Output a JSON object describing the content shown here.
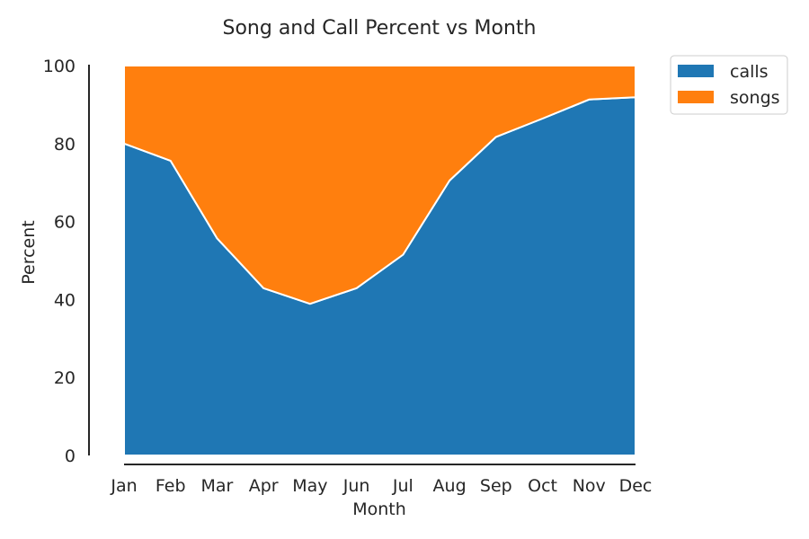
{
  "chart_data": {
    "type": "area",
    "stacked": true,
    "title": "Song and Call Percent vs Month",
    "xlabel": "Month",
    "ylabel": "Percent",
    "categories": [
      "Jan",
      "Feb",
      "Mar",
      "Apr",
      "May",
      "Jun",
      "Jul",
      "Aug",
      "Sep",
      "Oct",
      "Nov",
      "Dec"
    ],
    "series": [
      {
        "name": "calls",
        "color": "#1f77b4",
        "values": [
          80.0,
          75.6,
          55.7,
          42.9,
          38.9,
          42.9,
          51.5,
          70.5,
          81.7,
          86.4,
          91.3,
          91.9
        ]
      },
      {
        "name": "songs",
        "color": "#ff7f0e",
        "values": [
          20.0,
          24.4,
          44.3,
          57.1,
          61.1,
          57.1,
          48.5,
          29.5,
          18.3,
          13.6,
          8.7,
          8.1
        ]
      }
    ],
    "ylim": [
      0,
      100
    ],
    "yticks": [
      "0",
      "20",
      "40",
      "60",
      "80",
      "100"
    ],
    "grid": false,
    "legend_position": "outside-top-right"
  }
}
